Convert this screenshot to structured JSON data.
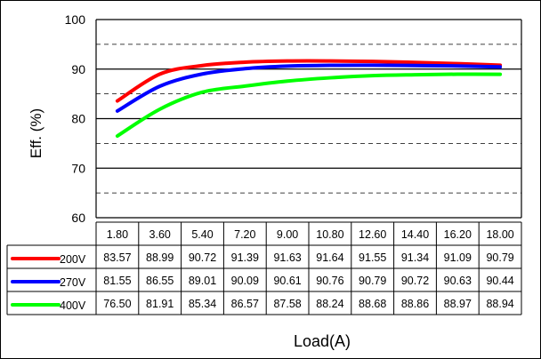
{
  "chart_data": {
    "type": "line",
    "title": "",
    "ylabel": "Eff. (%)",
    "xlabel": "Load(A)",
    "ylim": [
      60,
      100
    ],
    "yticks": [
      60,
      70,
      80,
      90,
      100
    ],
    "grid": "major solid, minor dashed",
    "categories": [
      "1.80",
      "3.60",
      "5.40",
      "7.20",
      "9.00",
      "10.80",
      "12.60",
      "14.40",
      "16.20",
      "18.00"
    ],
    "series": [
      {
        "name": "200V",
        "color": "#ff0000",
        "labels": [
          "83.57",
          "88.99",
          "90.72",
          "91.39",
          "91.63",
          "91.64",
          "91.55",
          "91.34",
          "91.09",
          "90.79"
        ],
        "values": [
          83.57,
          88.99,
          90.72,
          91.39,
          91.63,
          91.64,
          91.55,
          91.34,
          91.09,
          90.79
        ]
      },
      {
        "name": "270V",
        "color": "#0000ff",
        "labels": [
          "81.55",
          "86.55",
          "89.01",
          "90.09",
          "90.61",
          "90.76",
          "90.79",
          "90.72",
          "90.63",
          "90.44"
        ],
        "values": [
          81.55,
          86.55,
          89.01,
          90.09,
          90.61,
          90.76,
          90.79,
          90.72,
          90.63,
          90.44
        ]
      },
      {
        "name": "400V",
        "color": "#00ff00",
        "labels": [
          "76.50",
          "81.91",
          "85.34",
          "86.57",
          "87.58",
          "88.24",
          "88.68",
          "88.86",
          "88.97",
          "88.94"
        ],
        "values": [
          76.5,
          81.91,
          85.34,
          86.57,
          87.58,
          88.24,
          88.68,
          88.86,
          88.97,
          88.94
        ]
      }
    ]
  }
}
